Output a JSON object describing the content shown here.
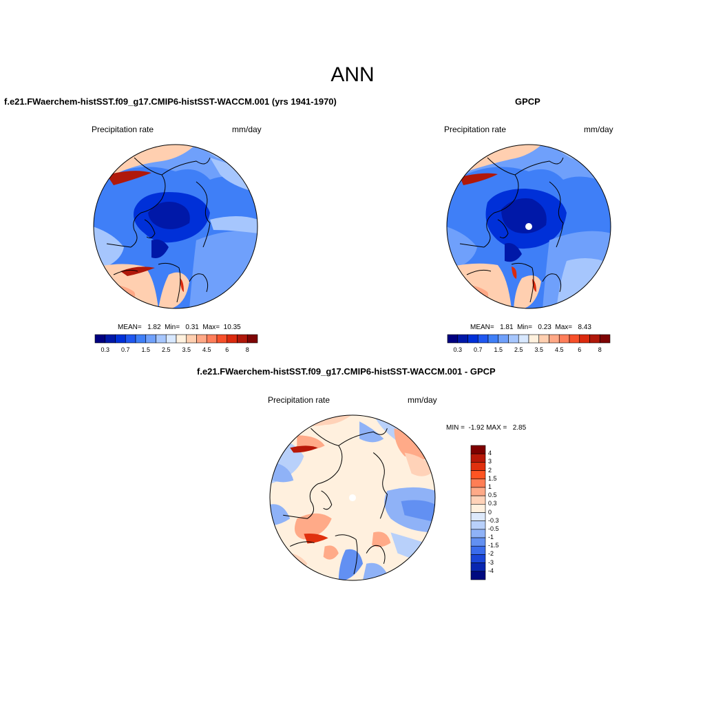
{
  "figure": {
    "title": "ANN"
  },
  "panels": [
    {
      "id": "model",
      "title": "f.e21.FWaerchem-histSST.f09_g17.CMIP6-histSST-WACCM.001 (yrs 1941-1970)",
      "variable": "Precipitation rate",
      "units": "mm/day",
      "stats_text": "MEAN=   1.82  Min=   0.31  Max=  10.35",
      "stats": {
        "mean": 1.82,
        "min": 0.31,
        "max": 10.35
      },
      "colorbar": {
        "levels": [
          "0.3",
          "0.7",
          "1.5",
          "2.5",
          "3.5",
          "4.5",
          "6",
          "8"
        ],
        "colors": [
          "#000080",
          "#0018a8",
          "#0030d8",
          "#1f57f0",
          "#3f7ff7",
          "#6fa0fb",
          "#a6c6fd",
          "#d8e8ff",
          "#fff1de",
          "#ffcfb0",
          "#ffa886",
          "#ff7e5a",
          "#f7502a",
          "#db2a0e",
          "#b0180a",
          "#7e0505"
        ]
      }
    },
    {
      "id": "obs",
      "title": "GPCP",
      "variable": "Precipitation rate",
      "units": "mm/day",
      "stats_text": "MEAN=   1.81  Min=   0.23  Max=   8.43",
      "stats": {
        "mean": 1.81,
        "min": 0.23,
        "max": 8.43
      },
      "colorbar": {
        "levels": [
          "0.3",
          "0.7",
          "1.5",
          "2.5",
          "3.5",
          "4.5",
          "6",
          "8"
        ],
        "colors": [
          "#000080",
          "#0018a8",
          "#0030d8",
          "#1f57f0",
          "#3f7ff7",
          "#6fa0fb",
          "#a6c6fd",
          "#d8e8ff",
          "#fff1de",
          "#ffcfb0",
          "#ffa886",
          "#ff7e5a",
          "#f7502a",
          "#db2a0e",
          "#b0180a",
          "#7e0505"
        ]
      }
    },
    {
      "id": "diff",
      "title": "f.e21.FWaerchem-histSST.f09_g17.CMIP6-histSST-WACCM.001 - GPCP",
      "variable": "Precipitation rate",
      "units": "mm/day",
      "stats_text": "MIN =  -1.92 MAX =   2.85",
      "stats": {
        "min": -1.92,
        "max": 2.85
      },
      "colorbar": {
        "levels": [
          "4",
          "3",
          "2",
          "1.5",
          "1",
          "0.5",
          "0.3",
          "0",
          "-0.3",
          "-0.5",
          "-1",
          "-1.5",
          "-2",
          "-3",
          "-4"
        ],
        "colors": [
          "#7e0000",
          "#b81808",
          "#e0300e",
          "#ff5422",
          "#ff7e55",
          "#ffaa88",
          "#ffd2b8",
          "#fff0de",
          "#dde9fb",
          "#b8d0fa",
          "#8fb2f7",
          "#6290f2",
          "#3a6cec",
          "#1a46d8",
          "#0826b0",
          "#000a80"
        ]
      }
    }
  ]
}
